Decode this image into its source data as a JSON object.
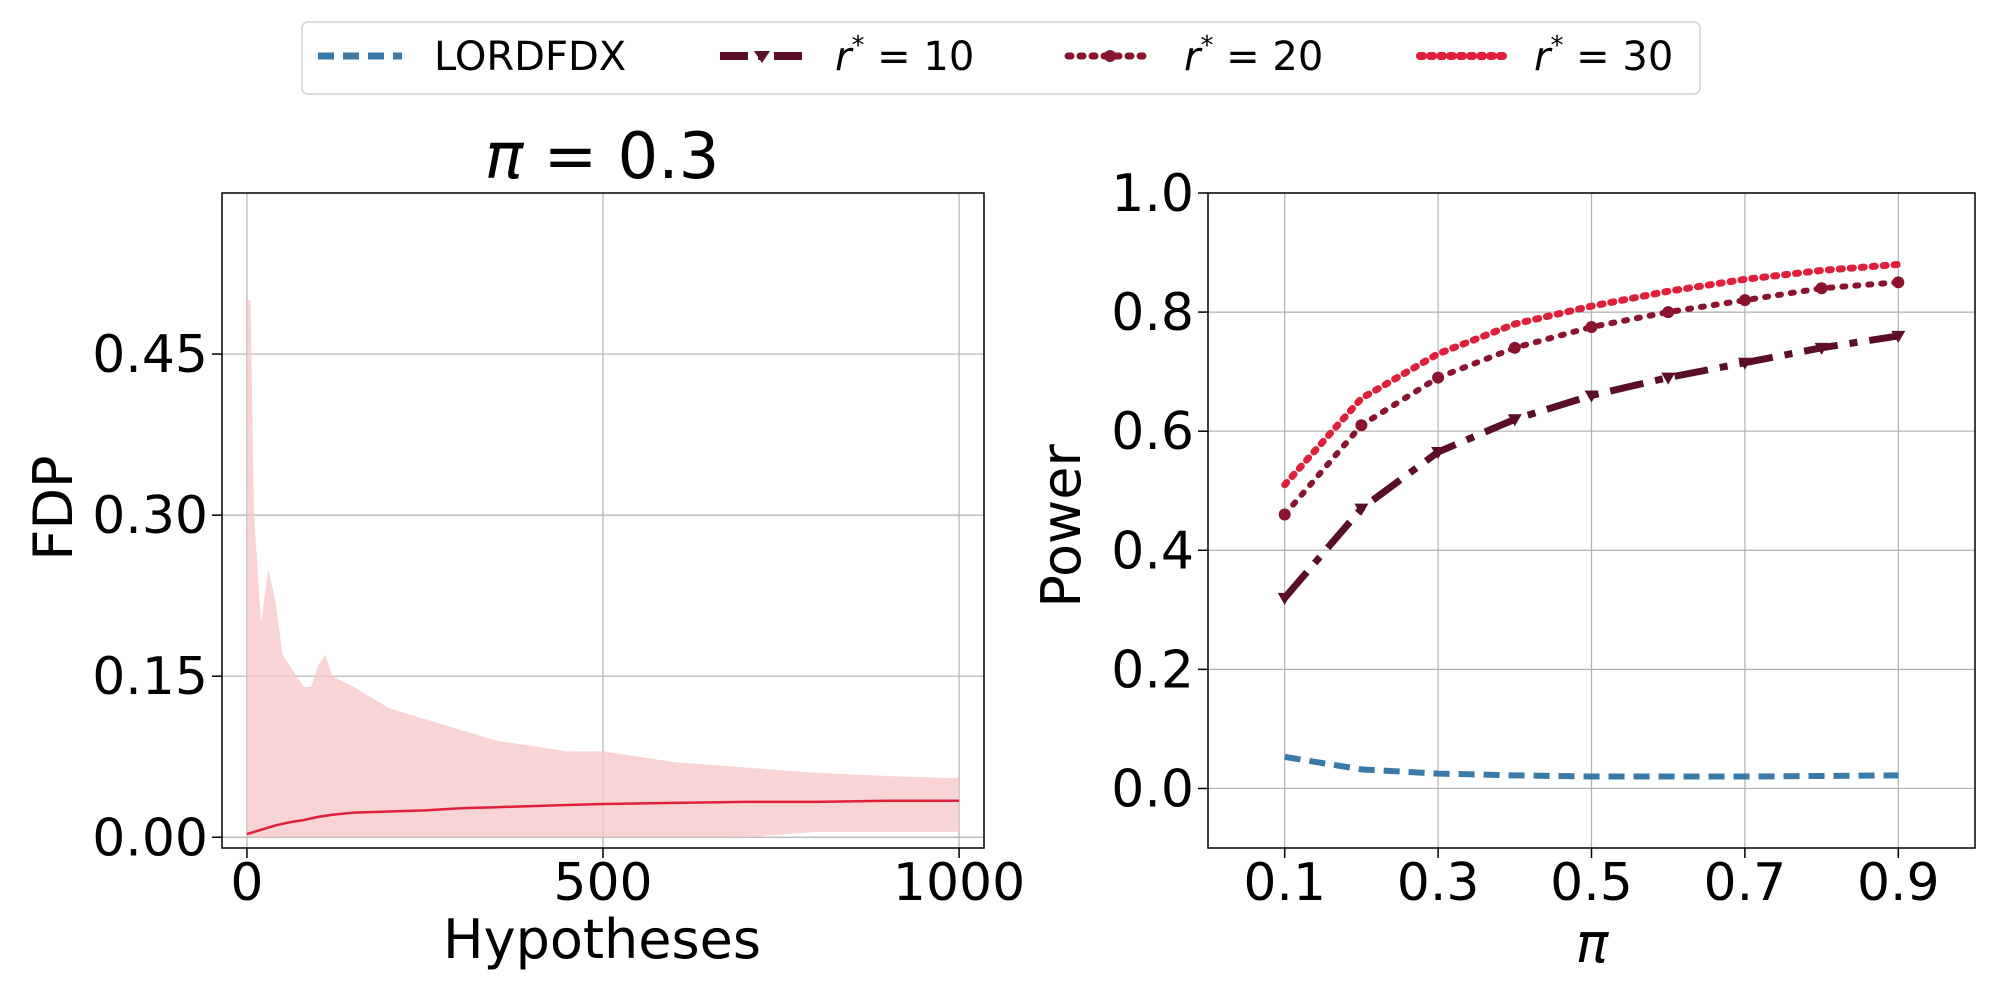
{
  "legend": {
    "entries": [
      {
        "label": "LORDFDX",
        "color": "#3a7aa8",
        "style": "dashed"
      },
      {
        "label": "r* = 10",
        "color": "#5a0f27",
        "style": "dashdot-triangle"
      },
      {
        "label": "r* = 20",
        "color": "#8a1430",
        "style": "dotted-circle"
      },
      {
        "label": "r* = 30",
        "color": "#e0203a",
        "style": "dotted"
      }
    ]
  },
  "chart_data": [
    {
      "type": "line",
      "title": "π = 0.3",
      "xlabel": "Hypotheses",
      "ylabel": "FDP",
      "xlim": [
        -35,
        1035
      ],
      "ylim": [
        -0.01,
        0.6
      ],
      "xticks": [
        0,
        500,
        1000
      ],
      "xtick_labels": [
        "0",
        "500",
        "1000"
      ],
      "yticks": [
        0.0,
        0.15,
        0.3,
        0.45
      ],
      "ytick_labels": [
        "0.00",
        "0.15",
        "0.30",
        "0.45"
      ],
      "grid": true,
      "series": [
        {
          "name": "mean FDP",
          "color": "#e0203a",
          "x": [
            0,
            10,
            20,
            40,
            60,
            80,
            100,
            120,
            150,
            200,
            250,
            300,
            350,
            400,
            450,
            500,
            600,
            700,
            800,
            900,
            1000
          ],
          "y": [
            0.003,
            0.005,
            0.007,
            0.011,
            0.014,
            0.016,
            0.019,
            0.021,
            0.023,
            0.024,
            0.025,
            0.027,
            0.028,
            0.029,
            0.03,
            0.031,
            0.032,
            0.033,
            0.033,
            0.034,
            0.034
          ]
        }
      ],
      "band": {
        "name": "FDP range",
        "color": "#f6c6c6",
        "x": [
          0,
          5,
          10,
          15,
          20,
          30,
          40,
          50,
          60,
          70,
          80,
          90,
          100,
          110,
          120,
          150,
          200,
          250,
          300,
          350,
          400,
          450,
          500,
          550,
          600,
          700,
          800,
          900,
          1000
        ],
        "upper": [
          0.5,
          0.5,
          0.3,
          0.25,
          0.2,
          0.25,
          0.22,
          0.17,
          0.16,
          0.15,
          0.14,
          0.14,
          0.16,
          0.17,
          0.15,
          0.14,
          0.12,
          0.11,
          0.1,
          0.09,
          0.085,
          0.08,
          0.08,
          0.075,
          0.07,
          0.065,
          0.06,
          0.057,
          0.055
        ],
        "lower": [
          0.0,
          0.0,
          0.0,
          0.0,
          0.0,
          0.0,
          0.0,
          0.0,
          0.0,
          0.0,
          0.0,
          0.0,
          0.0,
          0.0,
          0.0,
          0.0,
          0.0,
          0.0,
          0.0,
          0.0,
          0.0,
          0.0,
          0.0,
          0.0,
          0.0,
          0.0,
          0.005,
          0.005,
          0.005
        ]
      }
    },
    {
      "type": "line",
      "title": "",
      "xlabel": "π",
      "ylabel": "Power",
      "xlim": [
        0.0,
        1.0
      ],
      "ylim": [
        -0.1,
        1.0
      ],
      "xticks": [
        0.1,
        0.3,
        0.5,
        0.7,
        0.9
      ],
      "xtick_labels": [
        "0.1",
        "0.3",
        "0.5",
        "0.7",
        "0.9"
      ],
      "yticks": [
        0.0,
        0.2,
        0.4,
        0.6,
        0.8,
        1.0
      ],
      "ytick_labels": [
        "0.0",
        "0.2",
        "0.4",
        "0.6",
        "0.8",
        "1.0"
      ],
      "grid": true,
      "x": [
        0.1,
        0.2,
        0.3,
        0.4,
        0.5,
        0.6,
        0.7,
        0.8,
        0.9
      ],
      "series": [
        {
          "name": "LORDFDX",
          "color": "#3a7aa8",
          "values": [
            0.053,
            0.032,
            0.025,
            0.022,
            0.02,
            0.02,
            0.02,
            0.021,
            0.022
          ]
        },
        {
          "name": "r* = 10",
          "color": "#5a0f27",
          "values": [
            0.32,
            0.47,
            0.565,
            0.62,
            0.66,
            0.69,
            0.715,
            0.74,
            0.76
          ]
        },
        {
          "name": "r* = 20",
          "color": "#8a1430",
          "values": [
            0.46,
            0.61,
            0.69,
            0.74,
            0.775,
            0.8,
            0.82,
            0.84,
            0.85
          ]
        },
        {
          "name": "r* = 30",
          "color": "#e0203a",
          "values": [
            0.51,
            0.655,
            0.73,
            0.78,
            0.81,
            0.835,
            0.855,
            0.87,
            0.88
          ]
        }
      ]
    }
  ]
}
